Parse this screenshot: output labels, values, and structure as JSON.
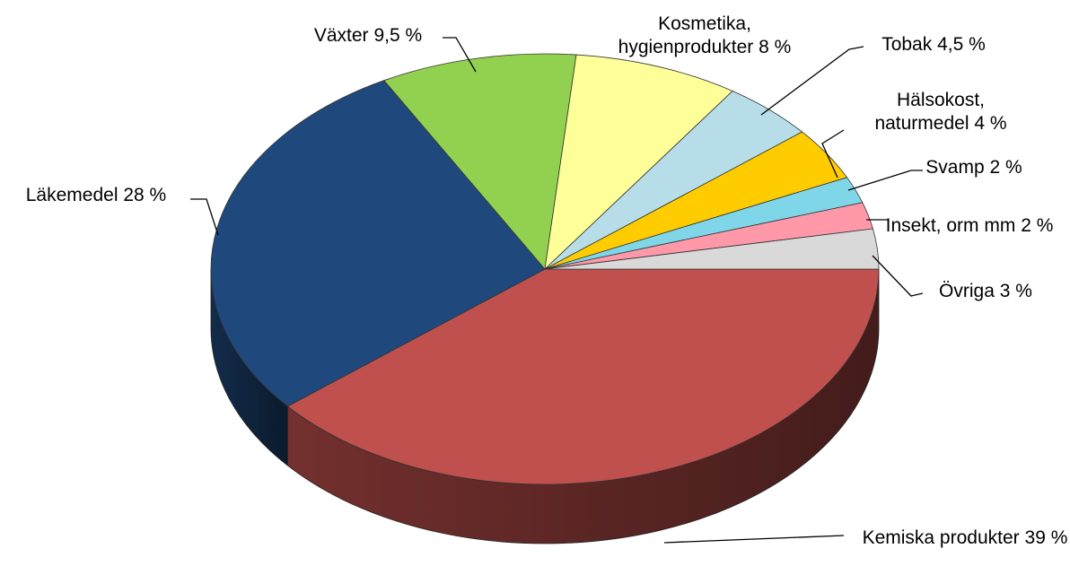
{
  "chart_data": {
    "type": "pie3d",
    "categories": [
      "Kemiska produkter",
      "Läkemedel",
      "Växter",
      "Kosmetika, hygienprodukter",
      "Tobak",
      "Hälsokost, naturmedel",
      "Svamp",
      "Insekt, orm mm",
      "Övriga"
    ],
    "values": [
      39,
      28,
      9.5,
      8,
      4.5,
      4,
      2,
      2,
      3
    ],
    "value_labels": [
      "39 %",
      "28 %",
      "9,5 %",
      "8 %",
      "4,5 %",
      "4 %",
      "2 %",
      "2 %",
      "3 %"
    ],
    "colors": [
      "#c0504d",
      "#1f497d",
      "#92d050",
      "#ffff99",
      "#b7dee8",
      "#ffcc00",
      "#7fd6e8",
      "#ff99aa",
      "#d9d9d9"
    ]
  }
}
